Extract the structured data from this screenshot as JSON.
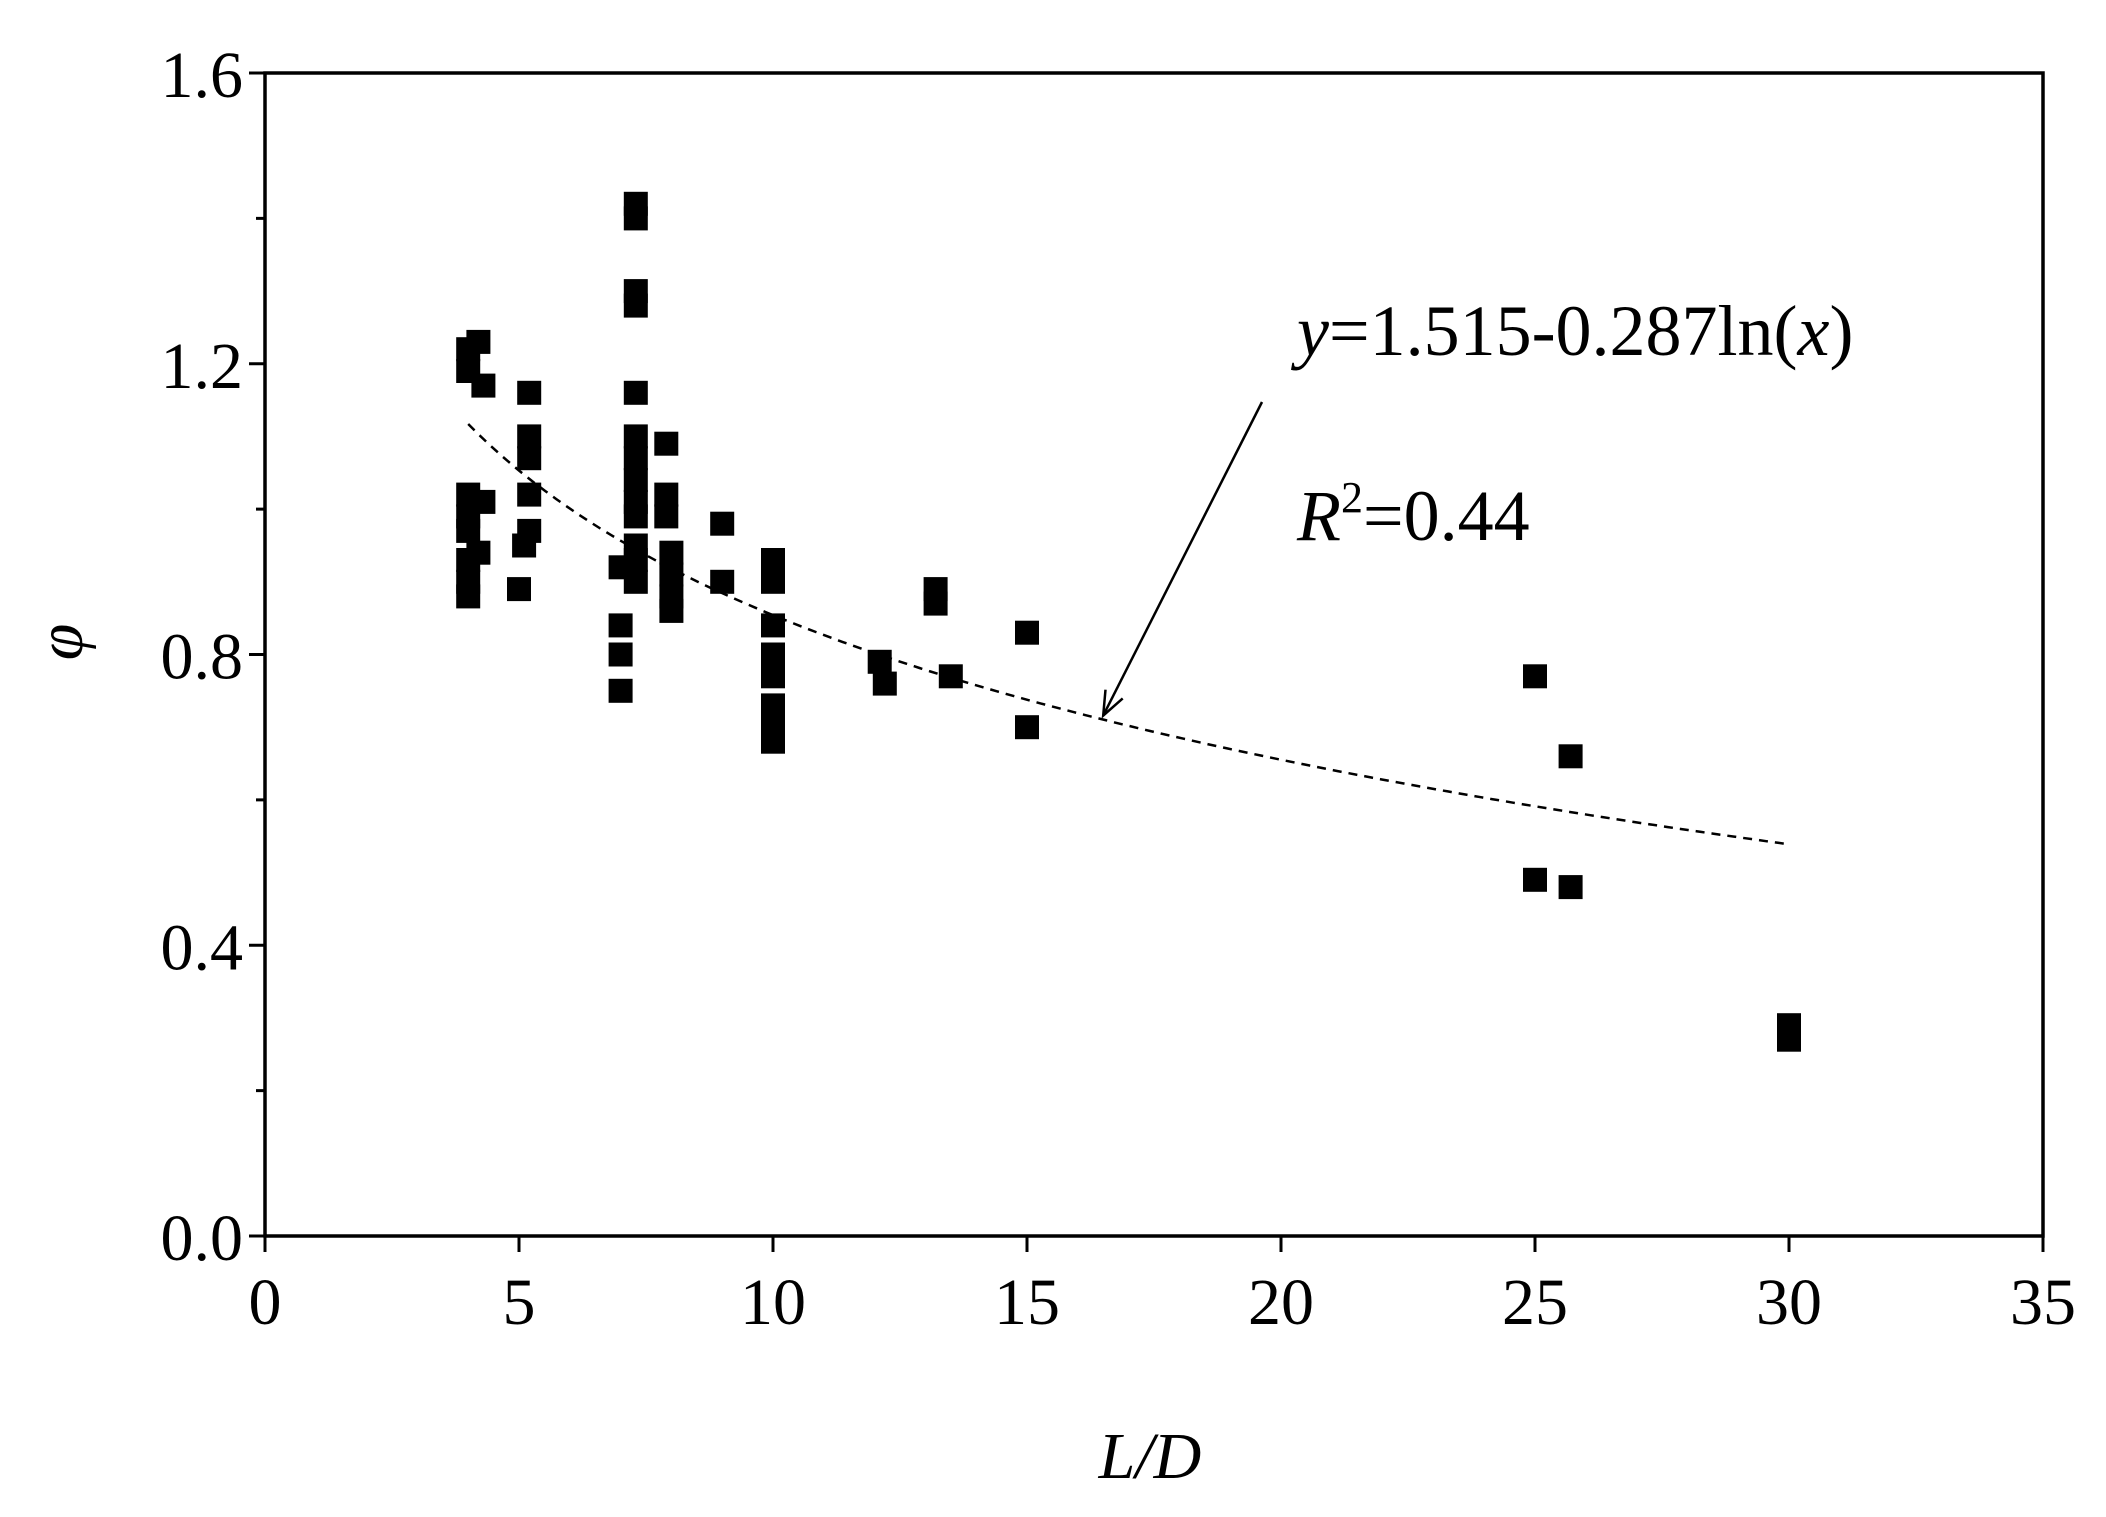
{
  "chart_data": {
    "type": "scatter",
    "title": "",
    "xlabel": "L/D",
    "ylabel": "φ",
    "xlim": [
      0,
      35
    ],
    "ylim": [
      0.0,
      1.6
    ],
    "x_ticks": [
      0,
      5,
      10,
      15,
      20,
      25,
      30,
      35
    ],
    "y_ticks": [
      0.0,
      0.4,
      0.8,
      1.2,
      1.6
    ],
    "x_tick_labels": [
      "0",
      "5",
      "10",
      "15",
      "20",
      "25",
      "30",
      "35"
    ],
    "y_tick_labels": [
      "0.0",
      "0.4",
      "0.8",
      "1.2",
      "1.6"
    ],
    "y_minor_ticks": [
      0.2,
      0.6,
      1.0,
      1.4
    ],
    "grid": false,
    "legend": "none",
    "marker_color": "#000000",
    "series": [
      {
        "marker": "square",
        "points": [
          [
            4,
            1.22
          ],
          [
            4,
            1.19
          ],
          [
            4,
            1.02
          ],
          [
            4,
            0.99
          ],
          [
            4,
            0.97
          ],
          [
            4,
            0.93
          ],
          [
            4,
            0.9
          ],
          [
            4,
            0.88
          ],
          [
            4.2,
            1.23
          ],
          [
            4.3,
            1.17
          ],
          [
            4.3,
            1.01
          ],
          [
            4.2,
            0.94
          ],
          [
            5,
            0.89
          ],
          [
            5.1,
            0.95
          ],
          [
            5.2,
            0.97
          ],
          [
            5.2,
            1.02
          ],
          [
            5.2,
            1.07
          ],
          [
            5.2,
            1.1
          ],
          [
            5.2,
            1.16
          ],
          [
            7,
            0.92
          ],
          [
            7,
            0.84
          ],
          [
            7,
            0.8
          ],
          [
            7,
            0.75
          ],
          [
            7.3,
            1.42
          ],
          [
            7.3,
            1.4
          ],
          [
            7.3,
            1.3
          ],
          [
            7.3,
            1.28
          ],
          [
            7.3,
            1.16
          ],
          [
            7.3,
            1.1
          ],
          [
            7.3,
            1.07
          ],
          [
            7.3,
            1.04
          ],
          [
            7.3,
            1.01
          ],
          [
            7.3,
            0.99
          ],
          [
            7.3,
            0.95
          ],
          [
            7.3,
            0.93
          ],
          [
            7.3,
            0.9
          ],
          [
            7.9,
            1.09
          ],
          [
            7.9,
            1.02
          ],
          [
            7.9,
            0.99
          ],
          [
            8,
            0.94
          ],
          [
            8,
            0.91
          ],
          [
            8,
            0.88
          ],
          [
            8,
            0.86
          ],
          [
            9,
            0.98
          ],
          [
            9,
            0.9
          ],
          [
            10,
            0.93
          ],
          [
            10,
            0.9
          ],
          [
            10,
            0.84
          ],
          [
            10,
            0.8
          ],
          [
            10,
            0.77
          ],
          [
            10,
            0.73
          ],
          [
            10,
            0.7
          ],
          [
            10,
            0.68
          ],
          [
            12.1,
            0.79
          ],
          [
            12.2,
            0.76
          ],
          [
            13.2,
            0.89
          ],
          [
            13.2,
            0.87
          ],
          [
            13.5,
            0.77
          ],
          [
            15,
            0.83
          ],
          [
            15,
            0.7
          ],
          [
            25,
            0.77
          ],
          [
            25,
            0.49
          ],
          [
            25.7,
            0.66
          ],
          [
            25.7,
            0.48
          ],
          [
            30,
            0.29
          ],
          [
            30,
            0.27
          ]
        ]
      }
    ],
    "fit": {
      "equation_label": {
        "y": "y",
        "rest": "=1.515-0.287ln(",
        "x": "x",
        "close": ")"
      },
      "r2_label": {
        "R": "R",
        "sup": "2",
        "rest": "=0.44"
      },
      "a": 1.515,
      "b": 0.287,
      "x_range": [
        4,
        30
      ],
      "style": "dashed"
    }
  }
}
